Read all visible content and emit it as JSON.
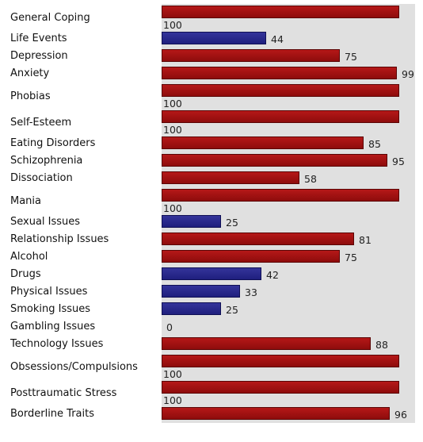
{
  "chart_data": {
    "type": "bar",
    "orientation": "horizontal",
    "xlim": [
      0,
      100
    ],
    "categories": [
      "General Coping",
      "Life Events",
      "Depression",
      "Anxiety",
      "Phobias",
      "Self-Esteem",
      "Eating Disorders",
      "Schizophrenia",
      "Dissociation",
      "Mania",
      "Sexual Issues",
      "Relationship Issues",
      "Alcohol",
      "Drugs",
      "Physical Issues",
      "Smoking Issues",
      "Gambling Issues",
      "Technology Issues",
      "Obsessions/Compulsions",
      "Posttraumatic Stress",
      "Borderline Traits"
    ],
    "values": [
      100,
      44,
      75,
      99,
      100,
      100,
      85,
      95,
      58,
      100,
      25,
      81,
      75,
      42,
      33,
      25,
      0,
      88,
      100,
      100,
      96
    ],
    "bar_colors": [
      "red",
      "blue",
      "red",
      "red",
      "red",
      "red",
      "red",
      "red",
      "red",
      "red",
      "blue",
      "red",
      "red",
      "blue",
      "blue",
      "blue",
      "red",
      "red",
      "red",
      "red",
      "red"
    ],
    "colors": {
      "red": "#a01010",
      "blue": "#27278a",
      "track": "#e0e0e0"
    }
  }
}
